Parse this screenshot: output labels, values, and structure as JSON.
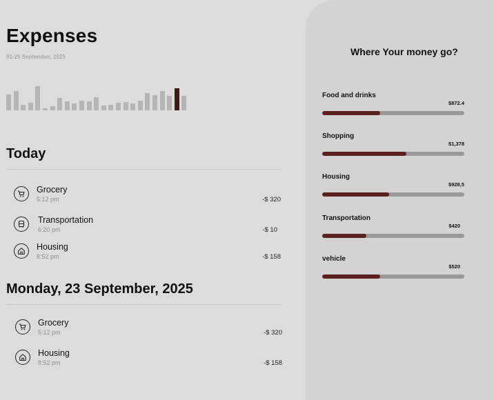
{
  "header": {
    "title": "Expenses",
    "subtitle": "01-25 September, 2025"
  },
  "chart_data": {
    "type": "bar",
    "values": [
      22,
      26,
      8,
      10,
      33,
      3,
      6,
      17,
      12,
      9,
      13,
      12,
      18,
      7,
      8,
      10,
      11,
      9,
      13,
      24,
      21,
      26,
      20,
      30,
      20
    ],
    "active_index": 23,
    "colors": {
      "default": "#b5b5b5",
      "active": "#3b1a17"
    }
  },
  "today": {
    "title": "Today",
    "items": [
      {
        "name": "Grocery",
        "time": "5:12 pm",
        "amount": "-$ 320",
        "icon": "cart-icon"
      },
      {
        "name": "Transportation",
        "time": "6:20 pm",
        "amount": "-$ 10",
        "icon": "bus-icon"
      },
      {
        "name": "Housing",
        "time": "8:52 pm",
        "amount": "-$ 158",
        "icon": "home-icon"
      }
    ]
  },
  "monday": {
    "title": "Monday, 23 September, 2025",
    "items": [
      {
        "name": "Grocery",
        "time": "5:12 pm",
        "amount": "-$ 320",
        "icon": "cart-icon"
      },
      {
        "name": "Housing",
        "time": "8:52 pm",
        "amount": "-$ 158",
        "icon": "home-icon"
      }
    ]
  },
  "panel": {
    "title": "Where Your money go?",
    "categories": [
      {
        "label": "Food and drinks",
        "amount": "$872.4",
        "fraction": 0.41
      },
      {
        "label": "Shopping",
        "amount": "$1,378",
        "fraction": 0.59
      },
      {
        "label": "Housing",
        "amount": "$928,5",
        "fraction": 0.47
      },
      {
        "label": "Transportation",
        "amount": "$420",
        "fraction": 0.31
      },
      {
        "label": "vehicle",
        "amount": "$520",
        "fraction": 0.41
      }
    ],
    "colors": {
      "track": "#9a9a9a",
      "fill": "#5a211e"
    }
  }
}
